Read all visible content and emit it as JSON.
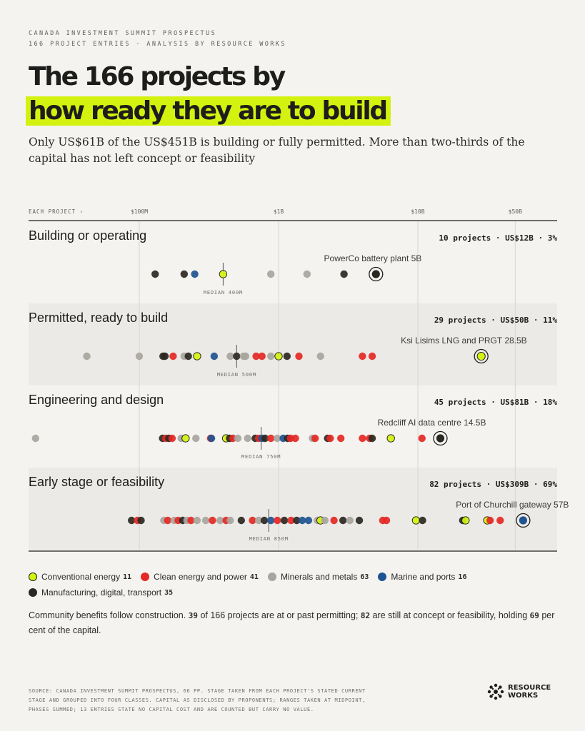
{
  "header": {
    "kicker_line1": "CANADA INVESTMENT SUMMIT PROSPECTUS",
    "kicker_line2": "166 PROJECT ENTRIES  ·  ANALYSIS BY RESOURCE WORKS",
    "title_line1": "The 166 projects by",
    "title_line2": "how ready they are to build",
    "subtitle": "Only US$61B of the US$451B is building or fully permitted. More than two-thirds of the capital has not left concept or feasibility"
  },
  "colors": {
    "conventional": "#d4f20f",
    "clean": "#e42825",
    "minerals": "#a8a5a0",
    "marine": "#1f5491",
    "manufacturing": "#2b2822",
    "highlight": "#d4f20f",
    "background": "#f4f3f0",
    "band": "#ebeae6"
  },
  "chart_data": {
    "type": "scatter",
    "x_scale": "log",
    "x_unit": "USD",
    "xlabel": "EACH PROJECT ›",
    "x_ticks": [
      {
        "value": 100000000,
        "label": "$100M"
      },
      {
        "value": 1000000000,
        "label": "$1B"
      },
      {
        "value": 10000000000,
        "label": "$10B"
      },
      {
        "value": 50000000000,
        "label": "$50B"
      }
    ],
    "xlim": [
      4000000,
      180000000000
    ],
    "grid": true,
    "rows": [
      {
        "label": "Building or operating",
        "summary": "10 projects  ·  US$12B  ·  3%",
        "median": 400000000,
        "median_label": "MEDIAN 400M",
        "shaded": false,
        "highlight": {
          "label": "PowerCo battery plant 5B",
          "value": 5000000000,
          "category": "manufacturing"
        },
        "points": [
          {
            "v": 130000000,
            "c": "manufacturing"
          },
          {
            "v": 210000000,
            "c": "manufacturing"
          },
          {
            "v": 250000000,
            "c": "marine"
          },
          {
            "v": 400000000,
            "c": "conventional"
          },
          {
            "v": 880000000,
            "c": "minerals"
          },
          {
            "v": 1600000000,
            "c": "minerals"
          },
          {
            "v": 2950000000,
            "c": "manufacturing"
          },
          {
            "v": 5000000000,
            "c": "manufacturing"
          }
        ]
      },
      {
        "label": "Permitted, ready to build",
        "summary": "29 projects  ·  US$50B  ·  11%",
        "median": 500000000,
        "median_label": "MEDIAN 500M",
        "shaded": true,
        "highlight": {
          "label": "Ksi Lisims LNG and PRGT 28.5B",
          "value": 28500000000,
          "category": "conventional"
        },
        "points": [
          {
            "v": 42000000,
            "c": "minerals"
          },
          {
            "v": 100000000,
            "c": "minerals"
          },
          {
            "v": 148000000,
            "c": "manufacturing"
          },
          {
            "v": 153000000,
            "c": "manufacturing"
          },
          {
            "v": 175000000,
            "c": "clean"
          },
          {
            "v": 210000000,
            "c": "minerals"
          },
          {
            "v": 225000000,
            "c": "manufacturing"
          },
          {
            "v": 260000000,
            "c": "conventional"
          },
          {
            "v": 345000000,
            "c": "marine"
          },
          {
            "v": 450000000,
            "c": "minerals"
          },
          {
            "v": 500000000,
            "c": "manufacturing"
          },
          {
            "v": 560000000,
            "c": "minerals"
          },
          {
            "v": 580000000,
            "c": "minerals"
          },
          {
            "v": 690000000,
            "c": "clean"
          },
          {
            "v": 760000000,
            "c": "clean"
          },
          {
            "v": 880000000,
            "c": "minerals"
          },
          {
            "v": 1000000000,
            "c": "conventional"
          },
          {
            "v": 1150000000,
            "c": "manufacturing"
          },
          {
            "v": 1400000000,
            "c": "clean"
          },
          {
            "v": 2000000000,
            "c": "minerals"
          },
          {
            "v": 4000000000,
            "c": "clean"
          },
          {
            "v": 4700000000,
            "c": "clean"
          },
          {
            "v": 28500000000,
            "c": "conventional"
          }
        ]
      },
      {
        "label": "Engineering and design",
        "summary": "45 projects  ·  US$81B  ·  18%",
        "median": 750000000,
        "median_label": "MEDIAN 750M",
        "shaded": false,
        "highlight": {
          "label": "Redcliff AI data centre 14.5B",
          "value": 14500000000,
          "category": "manufacturing"
        },
        "points": [
          {
            "v": 18000000,
            "c": "minerals"
          },
          {
            "v": 147000000,
            "c": "manufacturing"
          },
          {
            "v": 155000000,
            "c": "clean"
          },
          {
            "v": 163000000,
            "c": "manufacturing"
          },
          {
            "v": 172000000,
            "c": "clean"
          },
          {
            "v": 200000000,
            "c": "minerals"
          },
          {
            "v": 215000000,
            "c": "conventional"
          },
          {
            "v": 255000000,
            "c": "minerals"
          },
          {
            "v": 325000000,
            "c": "clean"
          },
          {
            "v": 330000000,
            "c": "marine"
          },
          {
            "v": 420000000,
            "c": "conventional"
          },
          {
            "v": 445000000,
            "c": "manufacturing"
          },
          {
            "v": 470000000,
            "c": "clean"
          },
          {
            "v": 510000000,
            "c": "minerals"
          },
          {
            "v": 600000000,
            "c": "minerals"
          },
          {
            "v": 680000000,
            "c": "manufacturing"
          },
          {
            "v": 720000000,
            "c": "clean"
          },
          {
            "v": 760000000,
            "c": "marine"
          },
          {
            "v": 800000000,
            "c": "manufacturing"
          },
          {
            "v": 880000000,
            "c": "clean"
          },
          {
            "v": 980000000,
            "c": "minerals"
          },
          {
            "v": 1080000000,
            "c": "marine"
          },
          {
            "v": 1160000000,
            "c": "manufacturing"
          },
          {
            "v": 1220000000,
            "c": "clean"
          },
          {
            "v": 1320000000,
            "c": "clean"
          },
          {
            "v": 1750000000,
            "c": "minerals"
          },
          {
            "v": 1830000000,
            "c": "clean"
          },
          {
            "v": 2250000000,
            "c": "manufacturing"
          },
          {
            "v": 2350000000,
            "c": "clean"
          },
          {
            "v": 2800000000,
            "c": "clean"
          },
          {
            "v": 4000000000,
            "c": "clean"
          },
          {
            "v": 4500000000,
            "c": "clean"
          },
          {
            "v": 4700000000,
            "c": "manufacturing"
          },
          {
            "v": 6400000000,
            "c": "conventional"
          },
          {
            "v": 10700000000,
            "c": "clean"
          },
          {
            "v": 14500000000,
            "c": "manufacturing"
          }
        ]
      },
      {
        "label": "Early stage or feasibility",
        "summary": "82 projects  ·  US$309B  ·  69%",
        "median": 850000000,
        "median_label": "MEDIAN 850M",
        "shaded": true,
        "highlight": {
          "label": "Port of Churchill gateway 57B",
          "value": 57000000000,
          "category": "marine"
        },
        "points": [
          {
            "v": 88000000,
            "c": "manufacturing"
          },
          {
            "v": 97000000,
            "c": "clean"
          },
          {
            "v": 103000000,
            "c": "manufacturing"
          },
          {
            "v": 150000000,
            "c": "minerals"
          },
          {
            "v": 160000000,
            "c": "clean"
          },
          {
            "v": 178000000,
            "c": "minerals"
          },
          {
            "v": 190000000,
            "c": "clean"
          },
          {
            "v": 205000000,
            "c": "manufacturing"
          },
          {
            "v": 220000000,
            "c": "minerals"
          },
          {
            "v": 235000000,
            "c": "clean"
          },
          {
            "v": 260000000,
            "c": "minerals"
          },
          {
            "v": 300000000,
            "c": "minerals"
          },
          {
            "v": 335000000,
            "c": "clean"
          },
          {
            "v": 380000000,
            "c": "minerals"
          },
          {
            "v": 420000000,
            "c": "clean"
          },
          {
            "v": 450000000,
            "c": "minerals"
          },
          {
            "v": 540000000,
            "c": "manufacturing"
          },
          {
            "v": 650000000,
            "c": "clean"
          },
          {
            "v": 720000000,
            "c": "minerals"
          },
          {
            "v": 790000000,
            "c": "manufacturing"
          },
          {
            "v": 880000000,
            "c": "marine"
          },
          {
            "v": 980000000,
            "c": "clean"
          },
          {
            "v": 1100000000,
            "c": "manufacturing"
          },
          {
            "v": 1230000000,
            "c": "clean"
          },
          {
            "v": 1350000000,
            "c": "manufacturing"
          },
          {
            "v": 1480000000,
            "c": "marine"
          },
          {
            "v": 1640000000,
            "c": "marine"
          },
          {
            "v": 1900000000,
            "c": "minerals"
          },
          {
            "v": 2000000000,
            "c": "conventional"
          },
          {
            "v": 2150000000,
            "c": "minerals"
          },
          {
            "v": 2500000000,
            "c": "clean"
          },
          {
            "v": 2900000000,
            "c": "manufacturing"
          },
          {
            "v": 3250000000,
            "c": "minerals"
          },
          {
            "v": 3800000000,
            "c": "manufacturing"
          },
          {
            "v": 5600000000,
            "c": "clean"
          },
          {
            "v": 5950000000,
            "c": "clean"
          },
          {
            "v": 9700000000,
            "c": "conventional"
          },
          {
            "v": 10800000000,
            "c": "manufacturing"
          },
          {
            "v": 21000000000,
            "c": "manufacturing"
          },
          {
            "v": 22000000000,
            "c": "conventional"
          },
          {
            "v": 31500000000,
            "c": "conventional"
          },
          {
            "v": 33000000000,
            "c": "clean"
          },
          {
            "v": 39000000000,
            "c": "clean"
          },
          {
            "v": 57000000000,
            "c": "marine"
          }
        ]
      }
    ]
  },
  "legend": [
    {
      "key": "conventional",
      "label": "Conventional energy",
      "count": "11"
    },
    {
      "key": "clean",
      "label": "Clean energy and power",
      "count": "41"
    },
    {
      "key": "minerals",
      "label": "Minerals and metals",
      "count": "63"
    },
    {
      "key": "marine",
      "label": "Marine and ports",
      "count": "16"
    },
    {
      "key": "manufacturing",
      "label": "Manufacturing, digital, transport",
      "count": "35"
    }
  ],
  "note": {
    "part1": "Community benefits follow construction. ",
    "n1": "39",
    "part2": " of 166 projects are at or past permitting; ",
    "n2": "82",
    "part3": " are still at concept or feasibility, holding ",
    "n3": "69",
    "part4": " per cent of the capital."
  },
  "source": "SOURCE: CANADA INVESTMENT SUMMIT PROSPECTUS, 66 PP. STAGE TAKEN FROM EACH PROJECT'S STATED CURRENT STAGE AND GROUPED INTO FOUR CLASSES. CAPITAL AS DISCLOSED BY PROPONENTS; RANGES TAKEN AT MIDPOINT, PHASES SUMMED; 13 ENTRIES STATE NO CAPITAL COST AND ARE COUNTED BUT CARRY NO VALUE.",
  "logo": {
    "line1": "RESOURCE",
    "line2": "WORKS"
  }
}
